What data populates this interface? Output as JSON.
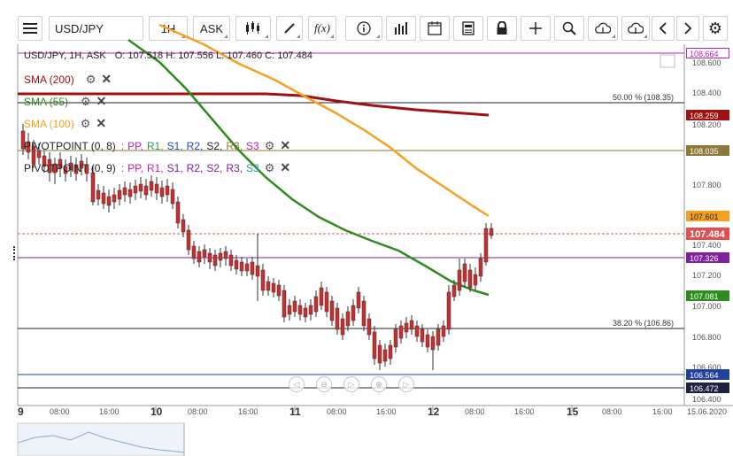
{
  "toolbar": {
    "menu_icon": "hamburger-menu-icon",
    "symbol": "USD/JPY",
    "timeframe": "1H",
    "price_type": "ASK",
    "buttons": [
      "candlestick-type-icon",
      "draw-pen-icon",
      "fx-indicator-icon",
      "info-icon",
      "bar-volume-icon",
      "calendar-icon",
      "news-icon",
      "lock-icon",
      "crosshair-icon",
      "zoom-icon",
      "upload-cloud-icon",
      "download-cloud-icon",
      "arrow-left-icon",
      "arrow-right-icon",
      "settings-gear-icon"
    ],
    "fx_label": "f(x)"
  },
  "ohlc": {
    "header": "USD/JPY, 1H, ASK",
    "values": "O: 107.518 H: 107.556 L: 107.460 C: 107.484"
  },
  "indicators": [
    {
      "label": "SMA (200)",
      "color": "#a01010"
    },
    {
      "label": "SMA (55)",
      "color": "#2e8b1e"
    },
    {
      "label": "SMA (100)",
      "color": "#f5a020"
    }
  ],
  "pivots": [
    {
      "label": "PIVOTPOINT (0, 8)",
      "sep": ":",
      "pp": "PP,",
      "r1": "R1,",
      "s1": "S1,",
      "r2": "R2,",
      "s2": "S2,",
      "r3": "R3,",
      "s3": "S3"
    },
    {
      "label": "PIVOTPOINT (0, 9)",
      "sep": ":",
      "pp": "PP,",
      "r1": "R1,",
      "s1": "S1,",
      "r2": "R2,",
      "s2": "S2,",
      "r3": "R3,",
      "s3": "S3"
    }
  ],
  "price_axis": [
    "108.600",
    "108.400",
    "108.200",
    "107.800",
    "107.400",
    "107.200",
    "107.000",
    "106.800",
    "106.600",
    "106.400"
  ],
  "price_badges": [
    {
      "text": "108.664",
      "bg": "#ffffff",
      "fg": "#c020c0",
      "border": "#c020c0"
    },
    {
      "text": "108.259",
      "bg": "#a01010",
      "fg": "#ffffff",
      "border": "#a01010"
    },
    {
      "text": "108.035",
      "bg": "#8b7a3a",
      "fg": "#ffffff",
      "border": "#8b7a3a"
    },
    {
      "text": "107.601",
      "bg": "#f5a020",
      "fg": "#222222",
      "border": "#f5a020"
    },
    {
      "text": "107.484",
      "bg": "#e05050",
      "fg": "#ffffff",
      "border": "#e05050"
    },
    {
      "text": "107.326",
      "bg": "#8020a0",
      "fg": "#ffffff",
      "border": "#8020a0"
    },
    {
      "text": "107.081",
      "bg": "#2e8b1e",
      "fg": "#ffffff",
      "border": "#2e8b1e"
    },
    {
      "text": "106.564",
      "bg": "#2040a0",
      "fg": "#ffffff",
      "border": "#2040a0"
    },
    {
      "text": "106.472",
      "bg": "#202040",
      "fg": "#ffffff",
      "border": "#202040"
    }
  ],
  "fib_labels": [
    {
      "text": "50.00 % (108.35)"
    },
    {
      "text": "38.20 % (106.86)"
    }
  ],
  "time_axis": [
    {
      "text": "9",
      "bold": true
    },
    {
      "text": "08:00"
    },
    {
      "text": "16:00"
    },
    {
      "text": "10",
      "bold": true
    },
    {
      "text": "08:00"
    },
    {
      "text": "16:00"
    },
    {
      "text": "11",
      "bold": true
    },
    {
      "text": "08:00"
    },
    {
      "text": "16:00"
    },
    {
      "text": "12",
      "bold": true
    },
    {
      "text": "08:00"
    },
    {
      "text": "16:00"
    },
    {
      "text": "15",
      "bold": true
    },
    {
      "text": "08:00"
    },
    {
      "text": "16:00"
    },
    {
      "text": "15.06.2020"
    }
  ],
  "nav_buttons": [
    "nav-back-icon",
    "zoom-out-icon",
    "reset-icon",
    "zoom-in-icon",
    "nav-forward-icon"
  ]
}
